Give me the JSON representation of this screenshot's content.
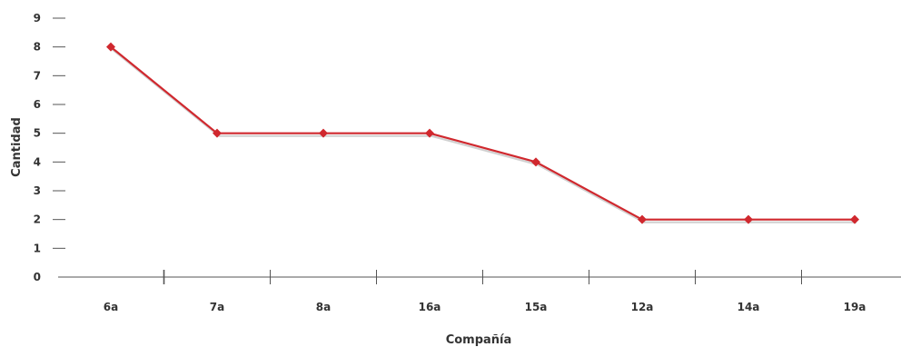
{
  "chart_data": {
    "type": "line",
    "xlabel": "Compañía",
    "ylabel": "Cantidad",
    "categories": [
      "6a",
      "7a",
      "8a",
      "16a",
      "15a",
      "12a",
      "14a",
      "19a"
    ],
    "series": [
      {
        "values": [
          8,
          5,
          5,
          5,
          4,
          2,
          2,
          2
        ]
      }
    ],
    "ylim": [
      0,
      9
    ],
    "yticks": [
      "0",
      "1",
      "2",
      "3",
      "4",
      "5",
      "6",
      "7",
      "8",
      "9"
    ],
    "grid": false,
    "line_color": "#d0282e",
    "axis_color": "#555555"
  }
}
